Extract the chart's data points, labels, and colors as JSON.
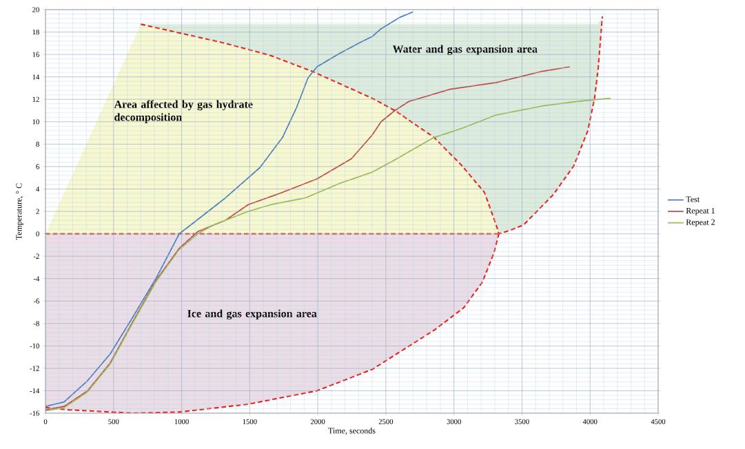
{
  "chart_data": {
    "type": "line",
    "xlabel": "Time, seconds",
    "ylabel": "Temperature, ° C",
    "xlim": [
      0,
      4500
    ],
    "xticks": [
      0,
      {
        "value": 100,
        "label": null
      },
      {
        "value": 200,
        "label": null
      },
      {
        "value": 300,
        "label": null
      },
      {
        "value": 400,
        "label": null
      },
      500,
      {
        "value": 600,
        "label": null
      },
      {
        "value": 700,
        "label": null
      },
      {
        "value": 800,
        "label": null
      },
      {
        "value": 900,
        "label": null
      },
      1000,
      {
        "value": 1100,
        "label": null
      },
      {
        "value": 1200,
        "label": null
      },
      {
        "value": 1300,
        "label": null
      },
      {
        "value": 1400,
        "label": null
      },
      1500,
      {
        "value": 1600,
        "label": null
      },
      {
        "value": 1700,
        "label": null
      },
      {
        "value": 1800,
        "label": null
      },
      {
        "value": 1900,
        "label": null
      },
      2000,
      {
        "value": 2100,
        "label": null
      },
      {
        "value": 2200,
        "label": null
      },
      {
        "value": 2300,
        "label": null
      },
      {
        "value": 2400,
        "label": null
      },
      2500,
      {
        "value": 2600,
        "label": null
      },
      {
        "value": 2700,
        "label": null
      },
      {
        "value": 2800,
        "label": null
      },
      {
        "value": 2900,
        "label": null
      },
      3000,
      {
        "value": 3100,
        "label": null
      },
      {
        "value": 3200,
        "label": null
      },
      {
        "value": 3300,
        "label": null
      },
      {
        "value": 3400,
        "label": null
      },
      3500,
      {
        "value": 3600,
        "label": null
      },
      {
        "value": 3700,
        "label": null
      },
      {
        "value": 3800,
        "label": null
      },
      {
        "value": 3900,
        "label": null
      },
      4000,
      {
        "value": 4100,
        "label": null
      },
      {
        "value": 4200,
        "label": null
      },
      {
        "value": 4300,
        "label": null
      },
      {
        "value": 4400,
        "label": null
      },
      4500
    ],
    "ylim": [
      -16,
      20
    ],
    "yticks": [
      -16,
      {
        "value": -15.6,
        "label": null
      },
      {
        "value": -15.2,
        "label": null
      },
      {
        "value": -14.8,
        "label": null
      },
      {
        "value": -14.4,
        "label": null
      },
      -14,
      {
        "value": -13.6,
        "label": null
      },
      {
        "value": -13.2,
        "label": null
      },
      {
        "value": -12.8,
        "label": null
      },
      {
        "value": -12.4,
        "label": null
      },
      -12,
      {
        "value": -11.6,
        "label": null
      },
      {
        "value": -11.2,
        "label": null
      },
      {
        "value": -10.8,
        "label": null
      },
      {
        "value": -10.4,
        "label": null
      },
      -10,
      {
        "value": -9.6,
        "label": null
      },
      {
        "value": -9.2,
        "label": null
      },
      {
        "value": -8.8,
        "label": null
      },
      {
        "value": -8.4,
        "label": null
      },
      -8,
      {
        "value": -7.6,
        "label": null
      },
      {
        "value": -7.2,
        "label": null
      },
      {
        "value": -6.8,
        "label": null
      },
      {
        "value": -6.4,
        "label": null
      },
      -6,
      {
        "value": -5.6,
        "label": null
      },
      {
        "value": -5.2,
        "label": null
      },
      {
        "value": -4.8,
        "label": null
      },
      {
        "value": -4.4,
        "label": null
      },
      -4,
      {
        "value": -3.6,
        "label": null
      },
      {
        "value": -3.2,
        "label": null
      },
      {
        "value": -2.8,
        "label": null
      },
      {
        "value": -2.4,
        "label": null
      },
      -2,
      {
        "value": -1.6,
        "label": null
      },
      {
        "value": -1.2,
        "label": null
      },
      {
        "value": -0.8,
        "label": null
      },
      {
        "value": -0.4,
        "label": null
      },
      0,
      {
        "value": 0.4,
        "label": null
      },
      {
        "value": 0.8,
        "label": null
      },
      {
        "value": 1.2,
        "label": null
      },
      {
        "value": 1.6,
        "label": null
      },
      2,
      {
        "value": 2.4,
        "label": null
      },
      {
        "value": 2.8,
        "label": null
      },
      {
        "value": 3.2,
        "label": null
      },
      {
        "value": 3.6,
        "label": null
      },
      4,
      {
        "value": 4.4,
        "label": null
      },
      {
        "value": 4.8,
        "label": null
      },
      {
        "value": 5.2,
        "label": null
      },
      {
        "value": 5.6,
        "label": null
      },
      6,
      {
        "value": 6.4,
        "label": null
      },
      {
        "value": 6.8,
        "label": null
      },
      {
        "value": 7.2,
        "label": null
      },
      {
        "value": 7.6,
        "label": null
      },
      8,
      {
        "value": 8.4,
        "label": null
      },
      {
        "value": 8.8,
        "label": null
      },
      {
        "value": 9.2,
        "label": null
      },
      {
        "value": 9.6,
        "label": null
      },
      10,
      {
        "value": 10.4,
        "label": null
      },
      {
        "value": 10.8,
        "label": null
      },
      {
        "value": 11.2,
        "label": null
      },
      {
        "value": 11.6,
        "label": null
      },
      12,
      {
        "value": 12.4,
        "label": null
      },
      {
        "value": 12.8,
        "label": null
      },
      {
        "value": 13.2,
        "label": null
      },
      {
        "value": 13.6,
        "label": null
      },
      14,
      {
        "value": 14.4,
        "label": null
      },
      {
        "value": 14.8,
        "label": null
      },
      {
        "value": 15.2,
        "label": null
      },
      {
        "value": 15.6,
        "label": null
      },
      16,
      {
        "value": 16.4,
        "label": null
      },
      {
        "value": 16.8,
        "label": null
      },
      {
        "value": 17.2,
        "label": null
      },
      {
        "value": 17.6,
        "label": null
      },
      18,
      {
        "value": 18.4,
        "label": null
      },
      {
        "value": 18.8,
        "label": null
      },
      {
        "value": 19.2,
        "label": null
      },
      {
        "value": 19.6,
        "label": null
      },
      20
    ],
    "grid": true,
    "legend": "right",
    "marker": "none",
    "annotations": [
      "Area affected by gas hydrate decomposition",
      "Water and gas expansion area",
      "Ice and gas expansion area"
    ],
    "series": [
      {
        "color": "#e8221a",
        "line_style": "dashed",
        "x": [
          0,
          700,
          1321,
          1655,
          1958,
          2399,
          2566,
          2854,
          3057,
          3224,
          3310,
          3330
        ],
        "values": [
          0,
          0,
          0,
          0,
          0,
          0,
          0,
          0,
          0,
          0,
          0,
          0
        ],
        "lower": [
          0,
          0,
          0,
          0,
          0,
          0,
          0,
          0,
          0,
          0,
          0,
          0
        ],
        "upper": [
          0,
          18.7,
          17.0,
          15.9,
          14.5,
          12.1,
          11.0,
          8.6,
          6.1,
          3.7,
          0.8,
          0
        ]
      },
      {
        "color": "#e8221a",
        "line_style": "dashed",
        "x": [
          700,
          1321,
          1655,
          1958,
          2399,
          2566,
          2854,
          3057,
          3224,
          3310,
          3330,
          3411,
          3512,
          3730,
          3882,
          3983,
          4033,
          4059,
          4090
        ],
        "values": [
          18.7,
          17.0,
          15.9,
          14.5,
          12.1,
          11.0,
          8.6,
          6.1,
          3.7,
          0.8,
          0,
          0.3,
          0.8,
          3.5,
          6.1,
          9.2,
          12.1,
          14.7,
          19.4
        ],
        "lower": [
          18.7,
          17.0,
          15.9,
          14.5,
          12.1,
          11.0,
          8.6,
          6.1,
          3.7,
          0.8,
          0,
          0.3,
          0.8,
          3.5,
          6.1,
          9.2,
          12.1,
          14.7,
          19.4
        ],
        "upper": [
          18.7,
          18.7,
          18.7,
          18.7,
          18.7,
          18.7,
          18.7,
          18.7,
          18.7,
          18.7,
          18.7,
          18.7,
          18.7,
          18.7,
          18.7,
          18.7,
          18.7,
          18.7,
          19.4
        ]
      },
      {
        "color": "#e8221a",
        "line_style": "dashed",
        "x": [
          0,
          172,
          643,
          982,
          1488,
          1994,
          2399,
          2854,
          3072,
          3209,
          3294,
          3330
        ],
        "values": [
          -15.5,
          -15.7,
          -16.0,
          -15.9,
          -15.2,
          -14.0,
          -12.1,
          -8.6,
          -6.6,
          -4.3,
          -1.7,
          0
        ],
        "lower": [
          -15.5,
          -15.7,
          -16.0,
          -15.9,
          -15.2,
          -14.0,
          -12.1,
          -8.6,
          -6.6,
          -4.3,
          -1.7,
          0
        ],
        "upper": [
          0,
          0,
          0,
          0,
          0,
          0,
          0,
          0,
          0,
          0,
          0,
          0
        ]
      },
      {
        "name": "Test",
        "color": "#4a7ebb",
        "x": [
          0,
          137,
          309,
          476,
          643,
          815,
          982,
          1068,
          1321,
          1574,
          1741,
          1842,
          1928,
          1994,
          2161,
          2300,
          2400,
          2465,
          2600,
          2700
        ],
        "values": [
          -15.4,
          -15.0,
          -13.1,
          -10.7,
          -7.4,
          -3.9,
          0,
          0.8,
          3.2,
          5.9,
          8.6,
          11.2,
          13.9,
          14.9,
          16.1,
          17.0,
          17.6,
          18.3,
          19.3,
          19.8
        ]
      },
      {
        "name": "Repeat 1",
        "color": "#be4b48",
        "x": [
          0,
          137,
          309,
          476,
          643,
          815,
          982,
          1118,
          1321,
          1488,
          1741,
          1994,
          2247,
          2399,
          2465,
          2566,
          2667,
          2971,
          3310,
          3648,
          3850
        ],
        "values": [
          -15.7,
          -15.4,
          -14.0,
          -11.5,
          -7.8,
          -4.1,
          -1.3,
          0.2,
          1.2,
          2.6,
          3.7,
          4.9,
          6.7,
          8.8,
          10.0,
          11.0,
          11.8,
          12.9,
          13.5,
          14.5,
          14.9
        ]
      },
      {
        "name": "Repeat 2",
        "color": "#98b954",
        "x": [
          0,
          137,
          309,
          476,
          643,
          815,
          982,
          1118,
          1235,
          1488,
          1655,
          1908,
          2161,
          2399,
          2551,
          2854,
          3057,
          3310,
          3648,
          3902,
          4150
        ],
        "values": [
          -15.8,
          -15.5,
          -14.1,
          -11.6,
          -7.9,
          -4.2,
          -1.4,
          0,
          0.8,
          2.0,
          2.6,
          3.2,
          4.5,
          5.5,
          6.5,
          8.6,
          9.4,
          10.6,
          11.4,
          11.8,
          12.1
        ]
      }
    ]
  }
}
